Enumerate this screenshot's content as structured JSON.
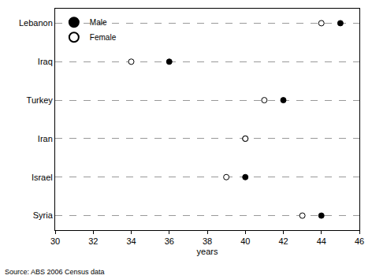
{
  "chart_data": {
    "type": "scatter",
    "orientation": "horizontal",
    "categories": [
      "Lebanon",
      "Iraq",
      "Turkey",
      "Iran",
      "Israel",
      "Syria"
    ],
    "series": [
      {
        "name": "Male",
        "color": "#000000",
        "marker": "filled",
        "values": [
          45,
          36,
          42,
          40,
          40,
          44
        ]
      },
      {
        "name": "Female",
        "color": "#000000",
        "marker": "open",
        "values": [
          44,
          34,
          41,
          40,
          39,
          43
        ]
      }
    ],
    "x_label": "years",
    "annotation": "Source: ABS 2006 Census data",
    "xlim": [
      30,
      46
    ],
    "xticks": [
      30,
      32,
      34,
      36,
      38,
      40,
      42,
      44,
      46
    ],
    "grid": true,
    "legend": "top-left"
  }
}
